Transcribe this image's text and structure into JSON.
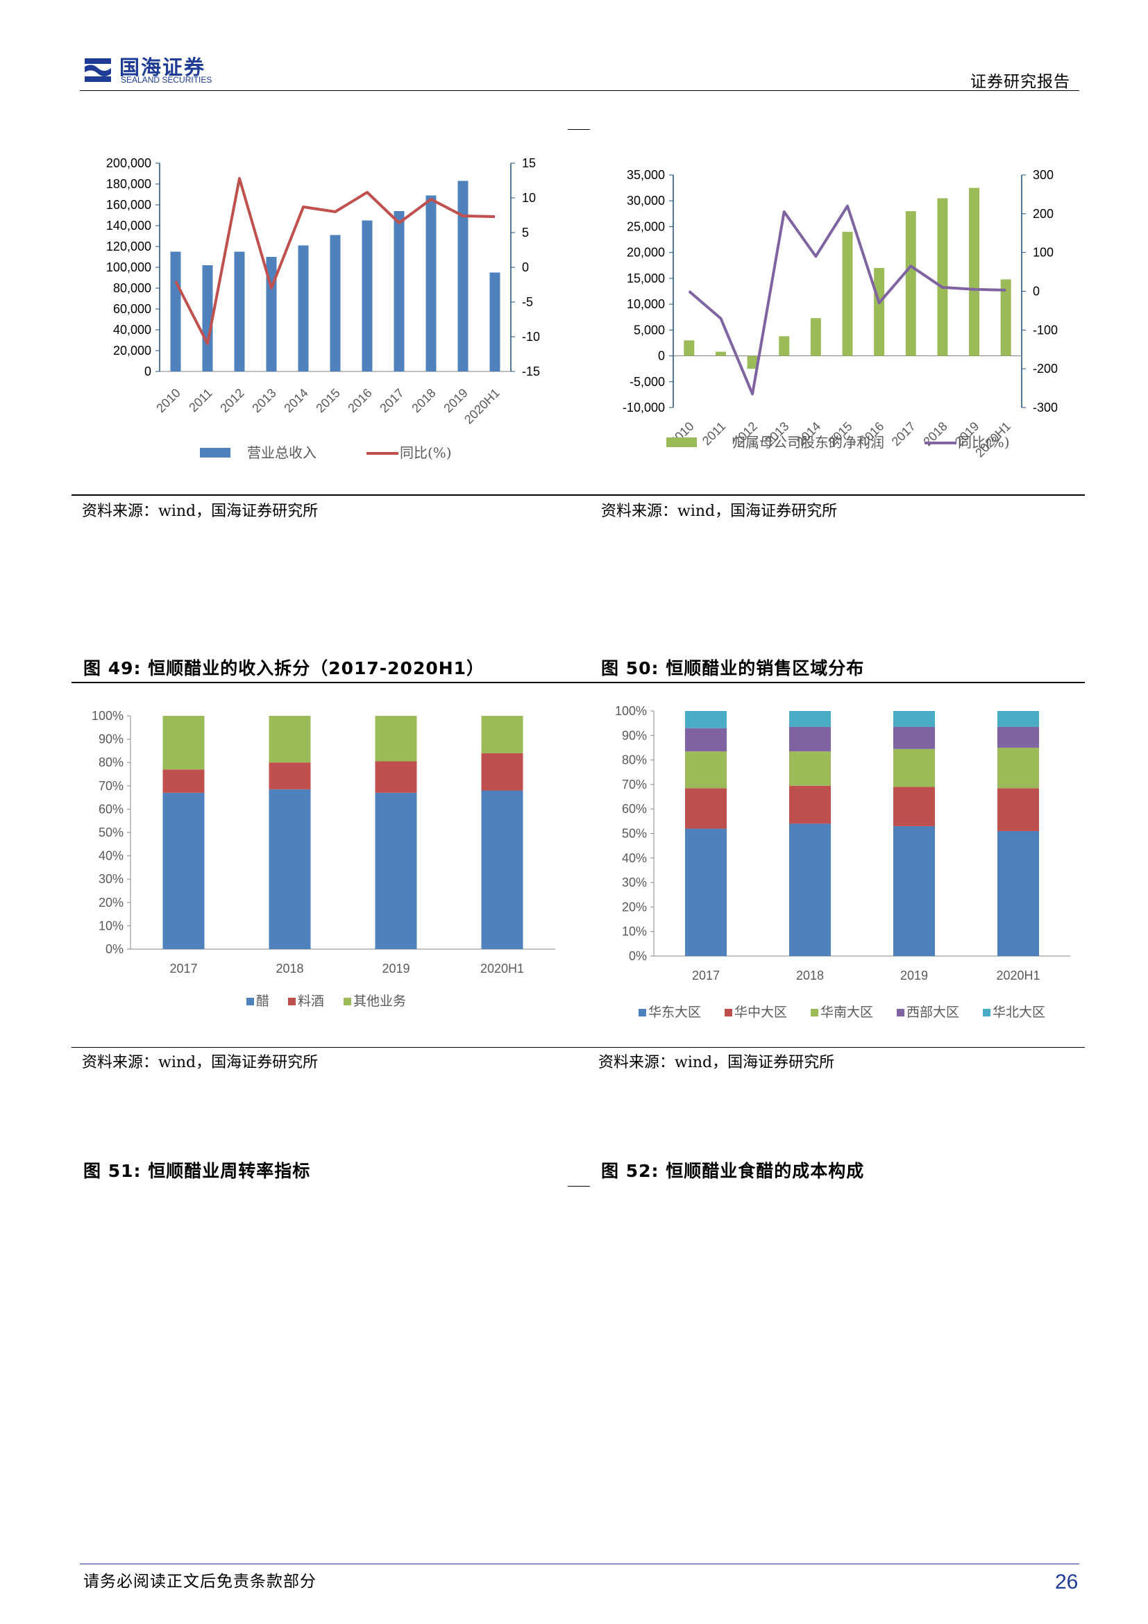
{
  "header": {
    "logo_cn": "国海证券",
    "logo_en": "SEALAND SECURITIES",
    "report_type": "证券研究报告"
  },
  "colors": {
    "blue": "#4F81BD",
    "red": "#C0504D",
    "green": "#9BBB59",
    "purple": "#8064A2",
    "cyan": "#4BACC6",
    "navy": "#1E3C96"
  },
  "figures": {
    "fig47": {
      "source": "资料来源：wind，国海证券研究所",
      "chart_data": {
        "type": "bar",
        "categories": [
          "2010",
          "2011",
          "2012",
          "2013",
          "2014",
          "2015",
          "2016",
          "2017",
          "2018",
          "2019",
          "2020H1"
        ],
        "series": [
          {
            "name": "营业总收入",
            "type": "bar",
            "axis": "left",
            "values": [
              115000,
              102000,
              115000,
              110000,
              121000,
              131000,
              145000,
              154000,
              169000,
              183000,
              95000
            ]
          },
          {
            "name": "同比(%)",
            "type": "line",
            "axis": "right",
            "values": [
              -2,
              -11,
              12.8,
              -3,
              8.7,
              8,
              10.8,
              6.4,
              9.8,
              7.4,
              7.3
            ]
          }
        ],
        "y_left": {
          "min": 0,
          "max": 200000,
          "ticks": [
            "0",
            "20,000",
            "40,000",
            "60,000",
            "80,000",
            "100,000",
            "120,000",
            "140,000",
            "160,000",
            "180,000",
            "200,000"
          ]
        },
        "y_right": {
          "min": -15,
          "max": 15,
          "ticks": [
            "-15",
            "-10",
            "-5",
            "0",
            "5",
            "10",
            "15"
          ]
        },
        "legend": [
          "营业总收入",
          "同比(%)"
        ]
      }
    },
    "fig48": {
      "source": "资料来源：wind，国海证券研究所",
      "chart_data": {
        "type": "bar",
        "categories": [
          "2010",
          "2011",
          "2012",
          "2013",
          "2014",
          "2015",
          "2016",
          "2017",
          "2018",
          "2019",
          "2020H1"
        ],
        "series": [
          {
            "name": "归属母公司股东的净利润",
            "type": "bar",
            "axis": "left",
            "values": [
              3000,
              800,
              -2500,
              3800,
              7300,
              24000,
              17000,
              28000,
              30500,
              32500,
              14800
            ]
          },
          {
            "name": "同比(%)",
            "type": "line",
            "axis": "right",
            "values": [
              0,
              -70,
              -265,
              205,
              90,
              220,
              -30,
              65,
              10,
              5,
              3
            ]
          }
        ],
        "y_left": {
          "min": -10000,
          "max": 35000,
          "ticks": [
            "-10,000",
            "-5,000",
            "0",
            "5,000",
            "10,000",
            "15,000",
            "20,000",
            "25,000",
            "30,000",
            "35,000"
          ]
        },
        "y_right": {
          "min": -300,
          "max": 300,
          "ticks": [
            "-300",
            "-200",
            "-100",
            "0",
            "100",
            "200",
            "300"
          ]
        },
        "legend": [
          "归属母公司股东的净利润",
          "同比(%)"
        ]
      }
    },
    "fig49": {
      "title": "图 49:  恒顺醋业的收入拆分（2017-2020H1）",
      "source": "资料来源：wind，国海证券研究所",
      "chart_data": {
        "type": "bar",
        "stacked": true,
        "categories": [
          "2017",
          "2018",
          "2019",
          "2020H1"
        ],
        "series": [
          {
            "name": "醋",
            "values": [
              67,
              68.5,
              67,
              68
            ]
          },
          {
            "name": "料酒",
            "values": [
              10,
              11.5,
              13.5,
              16
            ]
          },
          {
            "name": "其他业务",
            "values": [
              23,
              20,
              19.5,
              16
            ]
          }
        ],
        "y_ticks": [
          "0%",
          "10%",
          "20%",
          "30%",
          "40%",
          "50%",
          "60%",
          "70%",
          "80%",
          "90%",
          "100%"
        ]
      }
    },
    "fig50": {
      "title": "图 50:  恒顺醋业的销售区域分布",
      "source": "资料来源：wind，国海证券研究所",
      "chart_data": {
        "type": "bar",
        "stacked": true,
        "categories": [
          "2017",
          "2018",
          "2019",
          "2020H1"
        ],
        "series": [
          {
            "name": "华东大区",
            "values": [
              52,
              54,
              53,
              51
            ]
          },
          {
            "name": "华中大区",
            "values": [
              16.5,
              15.5,
              16,
              17.5
            ]
          },
          {
            "name": "华南大区",
            "values": [
              15,
              14,
              15.5,
              16.5
            ]
          },
          {
            "name": "西部大区",
            "values": [
              9.5,
              10,
              9,
              8.5
            ]
          },
          {
            "name": "华北大区",
            "values": [
              7,
              6.5,
              6.5,
              6.5
            ]
          }
        ],
        "y_ticks": [
          "0%",
          "10%",
          "20%",
          "30%",
          "40%",
          "50%",
          "60%",
          "70%",
          "80%",
          "90%",
          "100%"
        ]
      }
    },
    "fig51": {
      "title": "图 51:  恒顺醋业周转率指标"
    },
    "fig52": {
      "title": "图 52:  恒顺醋业食醋的成本构成"
    }
  },
  "footer": {
    "disclaimer": "请务必阅读正文后免责条款部分",
    "page_number": "26"
  }
}
